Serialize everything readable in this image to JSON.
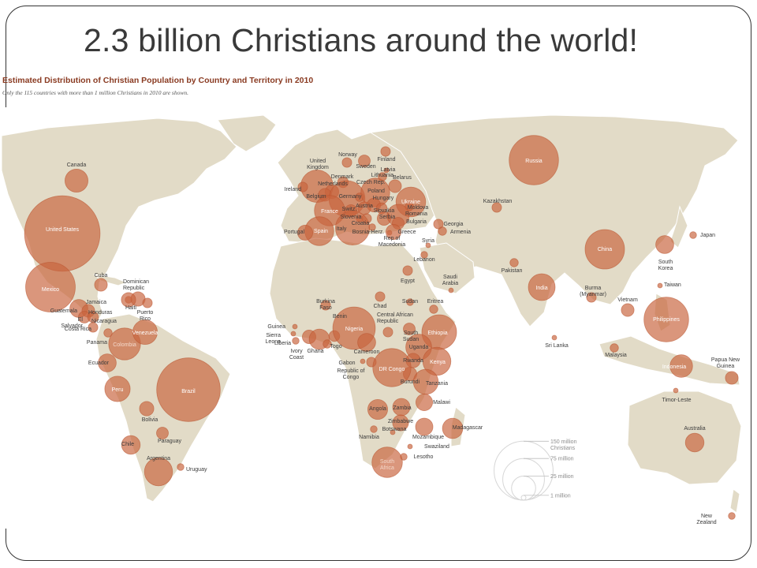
{
  "slide": {
    "title": "2.3 billion Christians around the world!"
  },
  "map": {
    "title": "Estimated Distribution of Christian Population by Country and Territory in 2010",
    "subtitle": "Only the 115 countries with more than 1 million Christians in 2010 are shown."
  },
  "legend": {
    "items": [
      "150 million\nChristians",
      "75 million",
      "25 million",
      "1 million"
    ]
  },
  "countries": [
    {
      "name": "Canada",
      "millions": 23
    },
    {
      "name": "United States",
      "millions": 247
    },
    {
      "name": "Mexico",
      "millions": 107
    },
    {
      "name": "Cuba",
      "millions": 7
    },
    {
      "name": "Dominican Republic",
      "millions": 9
    },
    {
      "name": "Jamaica",
      "millions": 2
    },
    {
      "name": "Haiti",
      "millions": 9
    },
    {
      "name": "Puerto Rico",
      "millions": 4
    },
    {
      "name": "Guatemala",
      "millions": 14
    },
    {
      "name": "Honduras",
      "millions": 7
    },
    {
      "name": "El Salvador",
      "millions": 6
    },
    {
      "name": "Nicaragua",
      "millions": 5
    },
    {
      "name": "Costa Rica",
      "millions": 4
    },
    {
      "name": "Panama",
      "millions": 3
    },
    {
      "name": "Colombia",
      "millions": 44
    },
    {
      "name": "Venezuela",
      "millions": 26
    },
    {
      "name": "Ecuador",
      "millions": 14
    },
    {
      "name": "Peru",
      "millions": 28
    },
    {
      "name": "Brazil",
      "millions": 175
    },
    {
      "name": "Bolivia",
      "millions": 9
    },
    {
      "name": "Paraguay",
      "millions": 6
    },
    {
      "name": "Chile",
      "millions": 15
    },
    {
      "name": "Argentina",
      "millions": 34
    },
    {
      "name": "Uruguay",
      "millions": 2
    },
    {
      "name": "Norway",
      "millions": 4
    },
    {
      "name": "Sweden",
      "millions": 6
    },
    {
      "name": "Finland",
      "millions": 4
    },
    {
      "name": "United Kingdom",
      "millions": 45
    },
    {
      "name": "Ireland",
      "millions": 4
    },
    {
      "name": "Denmark",
      "millions": 5
    },
    {
      "name": "Netherlands",
      "millions": 8
    },
    {
      "name": "Belgium",
      "millions": 7
    },
    {
      "name": "Germany",
      "millions": 56
    },
    {
      "name": "Czech Rep.",
      "millions": 3
    },
    {
      "name": "Poland",
      "millions": 36
    },
    {
      "name": "Lithuania",
      "millions": 3
    },
    {
      "name": "Latvia",
      "millions": 1
    },
    {
      "name": "Belarus",
      "millions": 7
    },
    {
      "name": "Ukraine",
      "millions": 38
    },
    {
      "name": "Moldova",
      "millions": 3
    },
    {
      "name": "Hungary",
      "millions": 8
    },
    {
      "name": "Slovakia",
      "millions": 5
    },
    {
      "name": "Austria",
      "millions": 7
    },
    {
      "name": "Switz.",
      "millions": 6
    },
    {
      "name": "France",
      "millions": 40
    },
    {
      "name": "Slovenia",
      "millions": 2
    },
    {
      "name": "Croatia",
      "millions": 4
    },
    {
      "name": "Serbia",
      "millions": 8
    },
    {
      "name": "Romania",
      "millions": 21
    },
    {
      "name": "Bulgaria",
      "millions": 6
    },
    {
      "name": "Bosnia-Herz.",
      "millions": 2
    },
    {
      "name": "Italy",
      "millions": 50
    },
    {
      "name": "Rep of Macedonia",
      "millions": 1
    },
    {
      "name": "Greece",
      "millions": 10
    },
    {
      "name": "Spain",
      "millions": 36
    },
    {
      "name": "Portugal",
      "millions": 10
    },
    {
      "name": "Russia",
      "millions": 105
    },
    {
      "name": "Georgia",
      "millions": 4
    },
    {
      "name": "Armenia",
      "millions": 3
    },
    {
      "name": "Kazakhstan",
      "millions": 4
    },
    {
      "name": "Syria",
      "millions": 1
    },
    {
      "name": "Lebanon",
      "millions": 2
    },
    {
      "name": "Egypt",
      "millions": 4
    },
    {
      "name": "Saudi Arabia",
      "millions": 1
    },
    {
      "name": "Burkina Faso",
      "millions": 4
    },
    {
      "name": "Chad",
      "millions": 4
    },
    {
      "name": "Sudan",
      "millions": 2
    },
    {
      "name": "Eritrea",
      "millions": 3
    },
    {
      "name": "Guinea",
      "millions": 1
    },
    {
      "name": "Sierra Leone",
      "millions": 1
    },
    {
      "name": "Liberia",
      "millions": 2
    },
    {
      "name": "Ivory Coast",
      "millions": 8
    },
    {
      "name": "Ghana",
      "millions": 18
    },
    {
      "name": "Togo",
      "millions": 3
    },
    {
      "name": "Benin",
      "millions": 5
    },
    {
      "name": "Nigeria",
      "millions": 78
    },
    {
      "name": "Cameroon",
      "millions": 14
    },
    {
      "name": "Central African Republic",
      "millions": 4
    },
    {
      "name": "South Sudan",
      "millions": 6
    },
    {
      "name": "Ethiopia",
      "millions": 52
    },
    {
      "name": "Uganda",
      "millions": 29
    },
    {
      "name": "Kenya",
      "millions": 34
    },
    {
      "name": "Rwanda",
      "millions": 9
    },
    {
      "name": "Burundi",
      "millions": 8
    },
    {
      "name": "Gabon",
      "millions": 1
    },
    {
      "name": "Republic of Congo",
      "millions": 4
    },
    {
      "name": "DR Congo",
      "millions": 63
    },
    {
      "name": "Tanzania",
      "millions": 27
    },
    {
      "name": "Angola",
      "millions": 17
    },
    {
      "name": "Zambia",
      "millions": 13
    },
    {
      "name": "Malawi",
      "millions": 12
    },
    {
      "name": "Zimbabwe",
      "millions": 11
    },
    {
      "name": "Mozambique",
      "millions": 13
    },
    {
      "name": "Namibia",
      "millions": 2
    },
    {
      "name": "Botswana",
      "millions": 1
    },
    {
      "name": "Swaziland",
      "millions": 1
    },
    {
      "name": "Lesotho",
      "millions": 2
    },
    {
      "name": "South Africa",
      "millions": 40
    },
    {
      "name": "Madagascar",
      "millions": 18
    },
    {
      "name": "China",
      "millions": 67
    },
    {
      "name": "Japan",
      "millions": 2
    },
    {
      "name": "South Korea",
      "millions": 14
    },
    {
      "name": "Taiwan",
      "millions": 1
    },
    {
      "name": "Pakistan",
      "millions": 3
    },
    {
      "name": "India",
      "millions": 31
    },
    {
      "name": "Burma (Myanmar)",
      "millions": 4
    },
    {
      "name": "Sri Lanka",
      "millions": 1
    },
    {
      "name": "Vietnam",
      "millions": 7
    },
    {
      "name": "Philippines",
      "millions": 86
    },
    {
      "name": "Malaysia",
      "millions": 3
    },
    {
      "name": "Indonesia",
      "millions": 22
    },
    {
      "name": "Papua New Guinea",
      "millions": 7
    },
    {
      "name": "Timor-Leste",
      "millions": 1
    },
    {
      "name": "Australia",
      "millions": 15
    },
    {
      "name": "New Zealand",
      "millions": 2
    }
  ]
}
